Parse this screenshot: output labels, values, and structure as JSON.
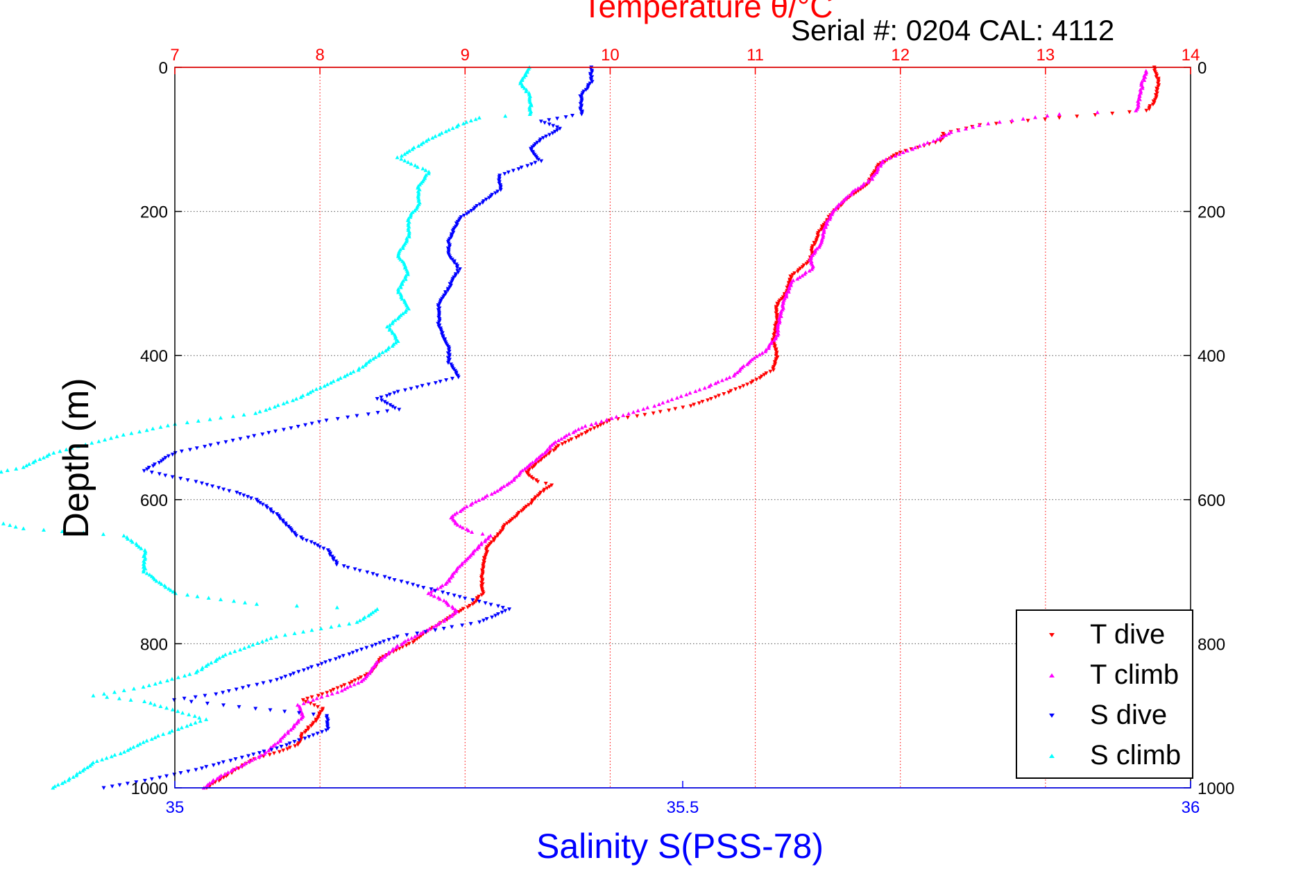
{
  "title_top": "Temperature θ/°C",
  "serial_text": "Serial #: 0204  CAL: 4112",
  "chart_data": {
    "type": "scatter",
    "title": "Temperature θ/°C",
    "ylabel": "Depth (m)",
    "xlabel": "Salinity S(PSS-78)",
    "ylim": [
      0,
      1000
    ],
    "y_reversed": true,
    "temp_axis": {
      "label": "Temperature θ/°C",
      "range": [
        7,
        14
      ],
      "ticks": [
        "7",
        "8",
        "9",
        "10",
        "11",
        "12",
        "13",
        "14"
      ]
    },
    "sal_axis": {
      "label": "Salinity S(PSS-78)",
      "range": [
        35,
        36
      ],
      "ticks": [
        "35",
        "35.5",
        "36"
      ]
    },
    "depth_ticks": [
      "0",
      "200",
      "400",
      "600",
      "800",
      "1000"
    ],
    "grid": true,
    "legend_position": "bottom-right",
    "series": [
      {
        "name": "T dive",
        "axis": "temp",
        "color": "#ff0000",
        "marker": "triangle-down",
        "points": [
          [
            13.75,
            0
          ],
          [
            13.78,
            20
          ],
          [
            13.76,
            45
          ],
          [
            13.7,
            60
          ],
          [
            13.1,
            70
          ],
          [
            12.55,
            80
          ],
          [
            12.3,
            92
          ],
          [
            12.28,
            102
          ],
          [
            12.0,
            118
          ],
          [
            11.85,
            135
          ],
          [
            11.78,
            160
          ],
          [
            11.62,
            185
          ],
          [
            11.52,
            205
          ],
          [
            11.45,
            225
          ],
          [
            11.4,
            248
          ],
          [
            11.38,
            268
          ],
          [
            11.25,
            290
          ],
          [
            11.22,
            310
          ],
          [
            11.15,
            330
          ],
          [
            11.15,
            350
          ],
          [
            11.12,
            380
          ],
          [
            11.15,
            400
          ],
          [
            11.12,
            420
          ],
          [
            10.95,
            440
          ],
          [
            10.7,
            460
          ],
          [
            10.55,
            470
          ],
          [
            10.3,
            480
          ],
          [
            10.0,
            490
          ],
          [
            9.85,
            505
          ],
          [
            9.65,
            525
          ],
          [
            9.52,
            545
          ],
          [
            9.42,
            562
          ],
          [
            9.5,
            575
          ],
          [
            9.6,
            580
          ],
          [
            9.52,
            590
          ],
          [
            9.45,
            605
          ],
          [
            9.28,
            635
          ],
          [
            9.22,
            650
          ],
          [
            9.15,
            668
          ],
          [
            9.12,
            700
          ],
          [
            9.12,
            730
          ],
          [
            9.05,
            745
          ],
          [
            8.92,
            760
          ],
          [
            8.75,
            782
          ],
          [
            8.62,
            800
          ],
          [
            8.42,
            820
          ],
          [
            8.35,
            840
          ],
          [
            8.2,
            855
          ],
          [
            8.02,
            870
          ],
          [
            7.88,
            878
          ],
          [
            8.02,
            890
          ],
          [
            7.98,
            905
          ],
          [
            7.88,
            925
          ],
          [
            7.85,
            940
          ],
          [
            7.72,
            950
          ],
          [
            7.55,
            960
          ],
          [
            7.42,
            975
          ],
          [
            7.3,
            990
          ],
          [
            7.22,
            1000
          ]
        ]
      },
      {
        "name": "T climb",
        "axis": "temp",
        "color": "#ff00ff",
        "marker": "triangle-up",
        "points": [
          [
            13.7,
            5
          ],
          [
            13.67,
            20
          ],
          [
            13.65,
            40
          ],
          [
            13.63,
            60
          ],
          [
            13.1,
            65
          ],
          [
            12.6,
            78
          ],
          [
            12.35,
            90
          ],
          [
            12.25,
            100
          ],
          [
            12.02,
            118
          ],
          [
            11.88,
            130
          ],
          [
            11.8,
            155
          ],
          [
            11.68,
            172
          ],
          [
            11.55,
            195
          ],
          [
            11.48,
            222
          ],
          [
            11.45,
            245
          ],
          [
            11.38,
            265
          ],
          [
            11.4,
            278
          ],
          [
            11.25,
            298
          ],
          [
            11.2,
            325
          ],
          [
            11.17,
            350
          ],
          [
            11.15,
            372
          ],
          [
            11.08,
            392
          ],
          [
            10.95,
            410
          ],
          [
            10.85,
            428
          ],
          [
            10.65,
            445
          ],
          [
            10.3,
            470
          ],
          [
            10.05,
            485
          ],
          [
            9.8,
            500
          ],
          [
            9.62,
            520
          ],
          [
            9.55,
            535
          ],
          [
            9.42,
            555
          ],
          [
            9.32,
            575
          ],
          [
            9.2,
            590
          ],
          [
            9.05,
            605
          ],
          [
            8.9,
            625
          ],
          [
            8.95,
            635
          ],
          [
            9.05,
            645
          ],
          [
            9.18,
            650
          ],
          [
            9.12,
            660
          ],
          [
            9.05,
            675
          ],
          [
            8.95,
            695
          ],
          [
            8.88,
            715
          ],
          [
            8.75,
            730
          ],
          [
            8.85,
            740
          ],
          [
            8.95,
            755
          ],
          [
            8.8,
            775
          ],
          [
            8.65,
            790
          ],
          [
            8.52,
            805
          ],
          [
            8.4,
            825
          ],
          [
            8.3,
            850
          ],
          [
            8.15,
            865
          ],
          [
            7.95,
            878
          ],
          [
            7.85,
            885
          ],
          [
            7.88,
            900
          ],
          [
            7.82,
            915
          ],
          [
            7.72,
            935
          ],
          [
            7.6,
            955
          ],
          [
            7.45,
            970
          ],
          [
            7.3,
            985
          ],
          [
            7.2,
            1000
          ]
        ]
      },
      {
        "name": "S dive",
        "axis": "sal",
        "color": "#0000ff",
        "marker": "triangle-down",
        "points": [
          [
            35.41,
            0
          ],
          [
            35.41,
            20
          ],
          [
            35.4,
            40
          ],
          [
            35.4,
            55
          ],
          [
            35.4,
            65
          ],
          [
            35.36,
            75
          ],
          [
            35.38,
            85
          ],
          [
            35.36,
            100
          ],
          [
            35.35,
            115
          ],
          [
            35.36,
            130
          ],
          [
            35.32,
            150
          ],
          [
            35.32,
            170
          ],
          [
            35.3,
            190
          ],
          [
            35.28,
            210
          ],
          [
            35.27,
            240
          ],
          [
            35.27,
            260
          ],
          [
            35.28,
            280
          ],
          [
            35.27,
            305
          ],
          [
            35.26,
            330
          ],
          [
            35.26,
            360
          ],
          [
            35.27,
            390
          ],
          [
            35.27,
            410
          ],
          [
            35.28,
            430
          ],
          [
            35.25,
            440
          ],
          [
            35.22,
            450
          ],
          [
            35.2,
            460
          ],
          [
            35.22,
            475
          ],
          [
            35.15,
            490
          ],
          [
            35.1,
            505
          ],
          [
            35.05,
            520
          ],
          [
            35.0,
            535
          ],
          [
            34.97,
            560
          ],
          [
            35.02,
            575
          ],
          [
            35.06,
            590
          ],
          [
            35.08,
            600
          ],
          [
            35.1,
            620
          ],
          [
            35.12,
            650
          ],
          [
            35.15,
            670
          ],
          [
            35.16,
            690
          ],
          [
            35.2,
            705
          ],
          [
            35.28,
            735
          ],
          [
            35.33,
            752
          ],
          [
            35.3,
            770
          ],
          [
            35.22,
            790
          ],
          [
            35.18,
            810
          ],
          [
            35.14,
            830
          ],
          [
            35.1,
            850
          ],
          [
            35.04,
            870
          ],
          [
            35.0,
            878
          ],
          [
            35.08,
            890
          ],
          [
            35.15,
            900
          ],
          [
            35.15,
            920
          ],
          [
            35.1,
            945
          ],
          [
            35.06,
            960
          ],
          [
            35.02,
            975
          ],
          [
            34.97,
            990
          ],
          [
            34.93,
            1000
          ]
        ]
      },
      {
        "name": "S climb",
        "axis": "sal",
        "color": "#00ffff",
        "marker": "triangle-up",
        "points": [
          [
            35.35,
            0
          ],
          [
            35.34,
            20
          ],
          [
            35.35,
            40
          ],
          [
            35.35,
            55
          ],
          [
            35.35,
            65
          ],
          [
            35.3,
            70
          ],
          [
            35.28,
            80
          ],
          [
            35.25,
            100
          ],
          [
            35.22,
            125
          ],
          [
            35.25,
            145
          ],
          [
            35.24,
            165
          ],
          [
            35.24,
            190
          ],
          [
            35.23,
            210
          ],
          [
            35.23,
            235
          ],
          [
            35.22,
            260
          ],
          [
            35.23,
            285
          ],
          [
            35.22,
            310
          ],
          [
            35.23,
            335
          ],
          [
            35.21,
            360
          ],
          [
            35.22,
            380
          ],
          [
            35.2,
            400
          ],
          [
            35.18,
            420
          ],
          [
            35.15,
            440
          ],
          [
            35.12,
            460
          ],
          [
            35.08,
            480
          ],
          [
            35.0,
            495
          ],
          [
            34.95,
            510
          ],
          [
            34.88,
            535
          ],
          [
            34.85,
            555
          ],
          [
            34.8,
            570
          ],
          [
            34.81,
            595
          ],
          [
            34.78,
            615
          ],
          [
            34.85,
            640
          ],
          [
            34.95,
            650
          ],
          [
            34.97,
            670
          ],
          [
            34.97,
            700
          ],
          [
            35.0,
            730
          ],
          [
            35.08,
            745
          ],
          [
            35.2,
            752
          ],
          [
            35.18,
            770
          ],
          [
            35.1,
            790
          ],
          [
            35.05,
            815
          ],
          [
            35.02,
            840
          ],
          [
            34.97,
            860
          ],
          [
            34.92,
            872
          ],
          [
            34.97,
            880
          ],
          [
            35.03,
            905
          ],
          [
            34.98,
            930
          ],
          [
            34.95,
            950
          ],
          [
            34.92,
            965
          ],
          [
            34.9,
            985
          ],
          [
            34.88,
            1000
          ]
        ]
      }
    ]
  }
}
